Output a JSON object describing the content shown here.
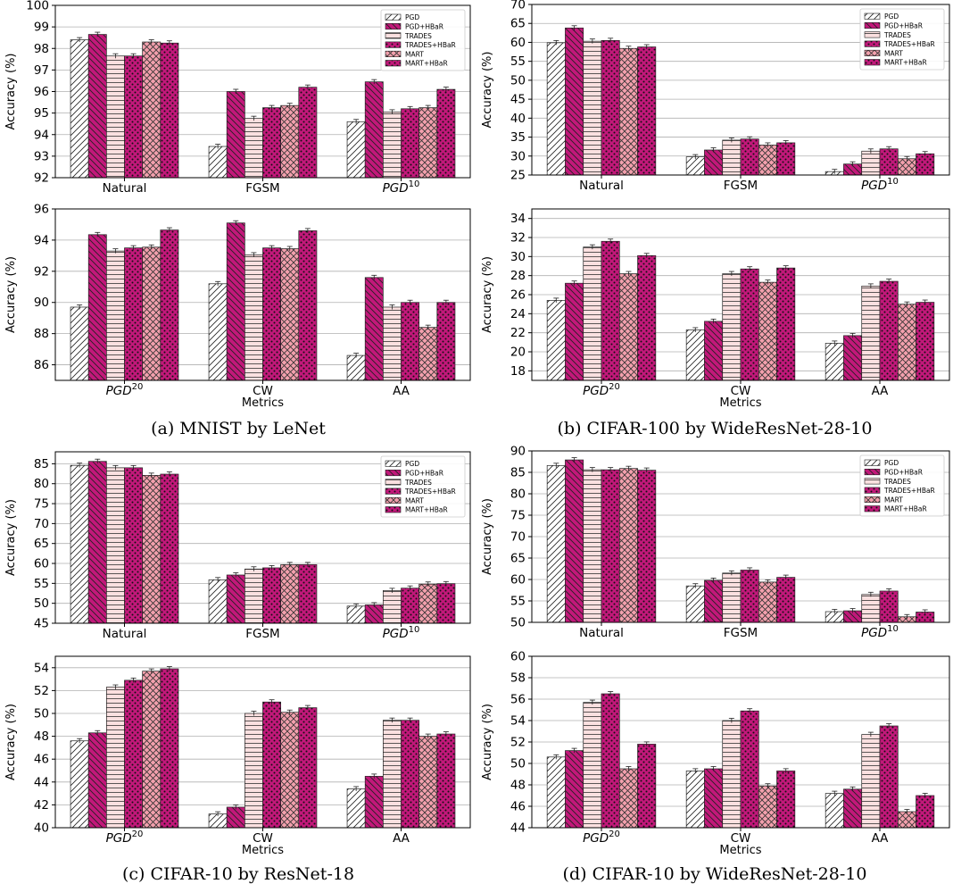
{
  "captions": [
    "(a) MNIST by LeNet",
    "(b) CIFAR-100 by WideResNet-28-10",
    "(c) CIFAR-10 by ResNet-18",
    "(d) CIFAR-10 by WideResNet-28-10"
  ],
  "series_names": [
    "PGD",
    "PGD+HBaR",
    "TRADES",
    "TRADES+HBaR",
    "MART",
    "MART+HBaR"
  ],
  "styles": {
    "colors": [
      "#ffffff",
      "#c2187a",
      "#fbe0e0",
      "#c2187a",
      "#f3a0ad",
      "#c2187a"
    ],
    "hatches": [
      "diag",
      "backdiag",
      "horiz",
      "dots",
      "cross",
      "dots"
    ]
  },
  "chart_data": [
    {
      "type": "bar",
      "categories": [
        "Natural",
        "FGSM",
        "PGD^10"
      ],
      "ylabel": "Accuracy (%)",
      "xlabel": "",
      "ylim": [
        92,
        100
      ],
      "yticks": [
        92,
        93,
        94,
        95,
        96,
        97,
        98,
        99,
        100
      ],
      "grid": true,
      "legend": "top-right",
      "series": [
        {
          "name": "PGD",
          "values": [
            98.4,
            93.45,
            94.6
          ]
        },
        {
          "name": "PGD+HBaR",
          "values": [
            98.65,
            96.0,
            96.45
          ]
        },
        {
          "name": "TRADES",
          "values": [
            97.65,
            94.75,
            95.05
          ]
        },
        {
          "name": "TRADES+HBaR",
          "values": [
            97.65,
            95.25,
            95.2
          ]
        },
        {
          "name": "MART",
          "values": [
            98.3,
            95.35,
            95.25
          ]
        },
        {
          "name": "MART+HBaR",
          "values": [
            98.25,
            96.2,
            96.1
          ]
        }
      ]
    },
    {
      "type": "bar",
      "categories": [
        "PGD^20",
        "CW",
        "AA"
      ],
      "ylabel": "Accuracy (%)",
      "xlabel": "Metrics",
      "ylim": [
        85,
        96
      ],
      "yticks": [
        86,
        88,
        90,
        92,
        94,
        96
      ],
      "grid": true,
      "series": [
        {
          "name": "PGD",
          "values": [
            89.7,
            91.2,
            86.6
          ]
        },
        {
          "name": "PGD+HBaR",
          "values": [
            94.35,
            95.1,
            91.6
          ]
        },
        {
          "name": "TRADES",
          "values": [
            93.3,
            93.05,
            89.7
          ]
        },
        {
          "name": "TRADES+HBaR",
          "values": [
            93.5,
            93.5,
            90.0
          ]
        },
        {
          "name": "MART",
          "values": [
            93.55,
            93.45,
            88.4
          ]
        },
        {
          "name": "MART+HBaR",
          "values": [
            94.65,
            94.6,
            90.0
          ]
        }
      ]
    },
    {
      "type": "bar",
      "categories": [
        "Natural",
        "FGSM",
        "PGD^10"
      ],
      "ylabel": "Accuracy (%)",
      "xlabel": "",
      "ylim": [
        25,
        70
      ],
      "yticks": [
        25,
        30,
        35,
        40,
        45,
        50,
        55,
        60,
        65,
        70
      ],
      "grid": true,
      "legend": "top-right",
      "series": [
        {
          "name": "PGD",
          "values": [
            59.9,
            29.8,
            25.9
          ]
        },
        {
          "name": "PGD+HBaR",
          "values": [
            63.8,
            31.6,
            27.9
          ]
        },
        {
          "name": "TRADES",
          "values": [
            60.3,
            34.2,
            31.3
          ]
        },
        {
          "name": "TRADES+HBaR",
          "values": [
            60.5,
            34.5,
            31.9
          ]
        },
        {
          "name": "MART",
          "values": [
            58.4,
            32.9,
            29.3
          ]
        },
        {
          "name": "MART+HBaR",
          "values": [
            58.8,
            33.5,
            30.6
          ]
        }
      ]
    },
    {
      "type": "bar",
      "categories": [
        "PGD^20",
        "CW",
        "AA"
      ],
      "ylabel": "Accuracy (%)",
      "xlabel": "Metrics",
      "ylim": [
        17,
        35
      ],
      "yticks": [
        18,
        20,
        22,
        24,
        26,
        28,
        30,
        32,
        34
      ],
      "grid": true,
      "series": [
        {
          "name": "PGD",
          "values": [
            25.4,
            22.3,
            20.9
          ]
        },
        {
          "name": "PGD+HBaR",
          "values": [
            27.2,
            23.2,
            21.7
          ]
        },
        {
          "name": "TRADES",
          "values": [
            31.0,
            28.2,
            26.9
          ]
        },
        {
          "name": "TRADES+HBaR",
          "values": [
            31.6,
            28.7,
            27.4
          ]
        },
        {
          "name": "MART",
          "values": [
            28.2,
            27.3,
            25.0
          ]
        },
        {
          "name": "MART+HBaR",
          "values": [
            30.1,
            28.8,
            25.2
          ]
        }
      ]
    },
    {
      "type": "bar",
      "categories": [
        "Natural",
        "FGSM",
        "PGD^10"
      ],
      "ylabel": "Accuracy (%)",
      "xlabel": "",
      "ylim": [
        45,
        88
      ],
      "yticks": [
        45,
        50,
        55,
        60,
        65,
        70,
        75,
        80,
        85
      ],
      "grid": true,
      "legend": "top-right",
      "series": [
        {
          "name": "PGD",
          "values": [
            84.6,
            55.9,
            49.3
          ]
        },
        {
          "name": "PGD+HBaR",
          "values": [
            85.6,
            57.1,
            49.6
          ]
        },
        {
          "name": "TRADES",
          "values": [
            84.0,
            58.6,
            53.2
          ]
        },
        {
          "name": "TRADES+HBaR",
          "values": [
            84.0,
            58.9,
            53.8
          ]
        },
        {
          "name": "MART",
          "values": [
            82.1,
            59.7,
            54.8
          ]
        },
        {
          "name": "MART+HBaR",
          "values": [
            82.4,
            59.7,
            54.9
          ]
        }
      ]
    },
    {
      "type": "bar",
      "categories": [
        "PGD^20",
        "CW",
        "AA"
      ],
      "ylabel": "Accuracy (%)",
      "xlabel": "Metrics",
      "ylim": [
        40,
        55
      ],
      "yticks": [
        40,
        42,
        44,
        46,
        48,
        50,
        52,
        54
      ],
      "grid": true,
      "series": [
        {
          "name": "PGD",
          "values": [
            47.6,
            41.2,
            43.4
          ]
        },
        {
          "name": "PGD+HBaR",
          "values": [
            48.3,
            41.8,
            44.5
          ]
        },
        {
          "name": "TRADES",
          "values": [
            52.3,
            50.0,
            49.4
          ]
        },
        {
          "name": "TRADES+HBaR",
          "values": [
            52.9,
            51.0,
            49.4
          ]
        },
        {
          "name": "MART",
          "values": [
            53.7,
            50.1,
            48.0
          ]
        },
        {
          "name": "MART+HBaR",
          "values": [
            53.9,
            50.5,
            48.2
          ]
        }
      ]
    },
    {
      "type": "bar",
      "categories": [
        "Natural",
        "FGSM",
        "PGD^10"
      ],
      "ylabel": "Accuracy (%)",
      "xlabel": "",
      "ylim": [
        50,
        90
      ],
      "yticks": [
        50,
        55,
        60,
        65,
        70,
        75,
        80,
        85,
        90
      ],
      "grid": true,
      "legend": "top-right",
      "series": [
        {
          "name": "PGD",
          "values": [
            86.6,
            58.5,
            52.5
          ]
        },
        {
          "name": "PGD+HBaR",
          "values": [
            87.9,
            59.8,
            52.7
          ]
        },
        {
          "name": "TRADES",
          "values": [
            85.6,
            61.5,
            56.5
          ]
        },
        {
          "name": "TRADES+HBaR",
          "values": [
            85.6,
            62.2,
            57.3
          ]
        },
        {
          "name": "MART",
          "values": [
            85.9,
            59.4,
            51.3
          ]
        },
        {
          "name": "MART+HBaR",
          "values": [
            85.5,
            60.5,
            52.4
          ]
        }
      ]
    },
    {
      "type": "bar",
      "categories": [
        "PGD^20",
        "CW",
        "AA"
      ],
      "ylabel": "Accuracy (%)",
      "xlabel": "Metrics",
      "ylim": [
        44,
        60
      ],
      "yticks": [
        44,
        46,
        48,
        50,
        52,
        54,
        56,
        58,
        60
      ],
      "grid": true,
      "series": [
        {
          "name": "PGD",
          "values": [
            50.6,
            49.3,
            47.2
          ]
        },
        {
          "name": "PGD+HBaR",
          "values": [
            51.2,
            49.5,
            47.6
          ]
        },
        {
          "name": "TRADES",
          "values": [
            55.7,
            54.0,
            52.7
          ]
        },
        {
          "name": "TRADES+HBaR",
          "values": [
            56.5,
            54.9,
            53.5
          ]
        },
        {
          "name": "MART",
          "values": [
            49.5,
            47.9,
            45.5
          ]
        },
        {
          "name": "MART+HBaR",
          "values": [
            51.8,
            49.3,
            47.0
          ]
        }
      ]
    }
  ]
}
